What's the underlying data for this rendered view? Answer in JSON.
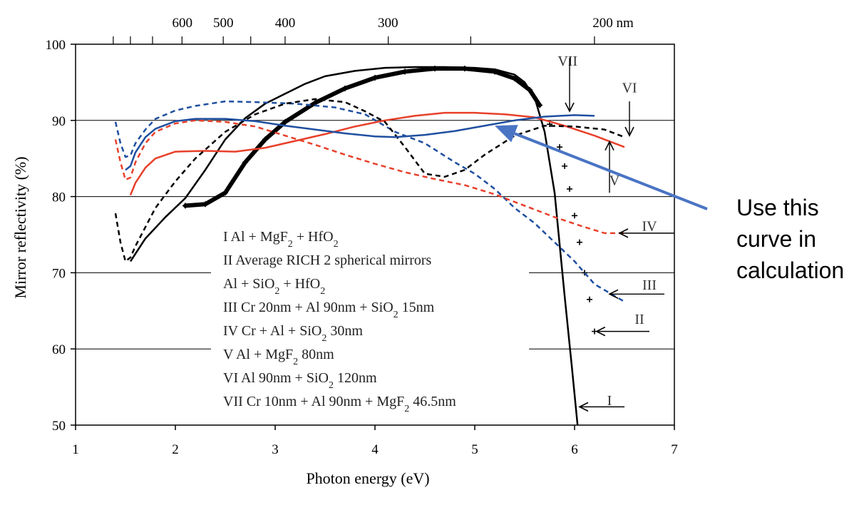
{
  "chart_data": {
    "type": "line",
    "xlabel": "Photon energy (eV)",
    "ylabel": "Mirror reflectivity (%)",
    "xlim": [
      1,
      7
    ],
    "ylim": [
      50,
      100
    ],
    "x_ticks": [
      1,
      2,
      3,
      4,
      5,
      6,
      7
    ],
    "y_ticks": [
      50,
      60,
      70,
      80,
      90,
      100
    ],
    "grid": "horizontal",
    "top_axis": {
      "ticks": [
        {
          "energy": 2.07,
          "label": "600"
        },
        {
          "energy": 2.48,
          "label": "500"
        },
        {
          "energy": 3.1,
          "label": "400"
        },
        {
          "energy": 4.13,
          "label": "300"
        },
        {
          "energy": 6.2,
          "label": "200 nm"
        }
      ]
    },
    "legend": [
      {
        "id": "I",
        "parts": [
          {
            "t": "I     Al + MgF"
          },
          {
            "t": "2",
            "sub": true
          },
          {
            "t": " + HfO"
          },
          {
            "t": "2",
            "sub": true
          }
        ]
      },
      {
        "id": "II",
        "parts": [
          {
            "t": "II    Average RICH 2 spherical mirrors"
          }
        ]
      },
      {
        "id": "II-b",
        "parts": [
          {
            "t": "         Al + SiO"
          },
          {
            "t": "2",
            "sub": true
          },
          {
            "t": " + HfO"
          },
          {
            "t": "2",
            "sub": true
          }
        ]
      },
      {
        "id": "III",
        "parts": [
          {
            "t": "III   Cr 20nm + Al 90nm + SiO"
          },
          {
            "t": "2",
            "sub": true
          },
          {
            "t": " 15nm"
          }
        ]
      },
      {
        "id": "IV",
        "parts": [
          {
            "t": "IV   Cr + Al + SiO"
          },
          {
            "t": "2",
            "sub": true
          },
          {
            "t": " 30nm"
          }
        ]
      },
      {
        "id": "V",
        "parts": [
          {
            "t": "V     Al + MgF"
          },
          {
            "t": "2",
            "sub": true
          },
          {
            "t": " 80nm"
          }
        ]
      },
      {
        "id": "VI",
        "parts": [
          {
            "t": "VI   Al 90nm + SiO"
          },
          {
            "t": "2",
            "sub": true
          },
          {
            "t": " 120nm"
          }
        ]
      },
      {
        "id": "VII",
        "parts": [
          {
            "t": "VII  Cr 10nm + Al 90nm + MgF"
          },
          {
            "t": "2",
            "sub": true
          },
          {
            "t": " 46.5nm"
          }
        ]
      }
    ],
    "series": [
      {
        "name": "I",
        "color": "#000000",
        "style": "solid",
        "x": [
          1.55,
          1.7,
          1.9,
          2.1,
          2.3,
          2.5,
          2.7,
          2.9,
          3.1,
          3.3,
          3.5,
          3.8,
          4.1,
          4.4,
          4.7,
          5.0,
          5.2,
          5.4,
          5.5,
          5.6,
          5.7,
          5.8,
          5.9,
          5.97,
          6.03
        ],
        "y": [
          71.5,
          74.5,
          77.3,
          79.8,
          83.5,
          87.5,
          90.3,
          92.2,
          93.5,
          94.8,
          95.8,
          96.5,
          96.9,
          97,
          97,
          96.9,
          96.7,
          96,
          95,
          93,
          88.5,
          80.5,
          67,
          58,
          50
        ]
      },
      {
        "name": "II",
        "color": "#000000",
        "style": "plus",
        "x": [
          2.1,
          2.3,
          2.5,
          2.7,
          2.9,
          3.1,
          3.4,
          3.7,
          4.0,
          4.3,
          4.6,
          4.9,
          5.2,
          5.4,
          5.55,
          5.65,
          5.75,
          5.85,
          5.9,
          5.95,
          6.0,
          6.05,
          6.1,
          6.15,
          6.2
        ],
        "y": [
          78.8,
          79,
          80.5,
          84.5,
          87.5,
          89.8,
          92.3,
          94.2,
          95.6,
          96.4,
          96.8,
          96.8,
          96.4,
          95.5,
          94,
          92,
          89.5,
          86.5,
          84,
          81,
          77.5,
          74,
          70,
          66.5,
          62.3
        ]
      },
      {
        "name": "III",
        "color": "#1f4fa0",
        "style": "dashed",
        "x": [
          1.4,
          1.45,
          1.5,
          1.55,
          1.6,
          1.7,
          1.8,
          2.0,
          2.2,
          2.5,
          2.8,
          3.2,
          3.6,
          3.9,
          4.2,
          4.5,
          4.8,
          5.0,
          5.2,
          5.4,
          5.6,
          5.8,
          6.0,
          6.2,
          6.5
        ],
        "y": [
          89.8,
          87,
          85.2,
          85.4,
          87,
          88.8,
          90.2,
          91.3,
          91.9,
          92.5,
          92.4,
          92.2,
          91.7,
          90.8,
          88.5,
          87,
          84.5,
          83,
          81,
          78.5,
          76.5,
          74,
          71.5,
          68.5,
          66.2
        ]
      },
      {
        "name": "IV",
        "color": "#e8402a",
        "style": "dashed",
        "x": [
          1.4,
          1.45,
          1.5,
          1.55,
          1.6,
          1.7,
          1.8,
          2.0,
          2.2,
          2.5,
          2.8,
          3.1,
          3.4,
          3.7,
          4.0,
          4.3,
          4.6,
          4.9,
          5.2,
          5.5,
          5.8,
          6.1,
          6.3,
          6.5
        ],
        "y": [
          87.5,
          84.5,
          82.2,
          82.5,
          84.5,
          87,
          88.5,
          89.6,
          90,
          89.8,
          89.2,
          88,
          86.8,
          85.5,
          84.3,
          83.2,
          82.3,
          81.5,
          80.3,
          78.8,
          77.3,
          76,
          75.2,
          75.2
        ]
      },
      {
        "name": "V",
        "color": "#e8402a",
        "style": "solid",
        "x": [
          1.55,
          1.6,
          1.7,
          1.8,
          2.0,
          2.3,
          2.6,
          2.9,
          3.2,
          3.5,
          3.8,
          4.1,
          4.4,
          4.7,
          5.0,
          5.3,
          5.6,
          5.9,
          6.2,
          6.5
        ],
        "y": [
          80.2,
          81.8,
          83.8,
          85,
          85.9,
          86,
          85.9,
          86.4,
          87.3,
          88.2,
          89.2,
          90,
          90.6,
          91,
          91,
          90.8,
          90.4,
          89.3,
          88,
          86.5
        ]
      },
      {
        "name": "VI",
        "color": "#000000",
        "style": "dashed",
        "x": [
          1.4,
          1.45,
          1.5,
          1.55,
          1.6,
          1.7,
          1.8,
          2.0,
          2.2,
          2.5,
          2.8,
          3.1,
          3.4,
          3.7,
          3.9,
          4.1,
          4.3,
          4.5,
          4.7,
          4.9,
          5.1,
          5.4,
          5.7,
          6.0,
          6.3,
          6.5
        ],
        "y": [
          77.8,
          74,
          71.5,
          72,
          73.5,
          76,
          78.5,
          82,
          85,
          88.5,
          90.8,
          92.2,
          92.8,
          92.4,
          91.2,
          89.8,
          86.5,
          83,
          82.6,
          83.5,
          85.5,
          88,
          89.3,
          89.2,
          88.8,
          87.8
        ]
      },
      {
        "name": "VII",
        "color": "#1f4fa0",
        "style": "solid",
        "x": [
          1.5,
          1.55,
          1.6,
          1.7,
          1.8,
          2.0,
          2.2,
          2.5,
          2.8,
          3.1,
          3.4,
          3.7,
          4.0,
          4.2,
          4.5,
          4.8,
          5.1,
          5.4,
          5.7,
          6.0,
          6.2
        ],
        "y": [
          83.5,
          84,
          85.8,
          87.8,
          88.9,
          89.9,
          90.2,
          90.2,
          89.9,
          89.3,
          88.8,
          88.3,
          87.9,
          87.8,
          88.1,
          88.6,
          89.3,
          90,
          90.5,
          90.7,
          90.6
        ]
      }
    ],
    "curve_labels": [
      {
        "text": "VII",
        "x": 5.93,
        "y": 97.2
      },
      {
        "text": "VI",
        "x": 6.55,
        "y": 93.7
      },
      {
        "text": "V",
        "x": 6.4,
        "y": 81.5
      },
      {
        "text": "IV",
        "x": 6.75,
        "y": 75.5
      },
      {
        "text": "III",
        "x": 6.75,
        "y": 67.8
      },
      {
        "text": "II",
        "x": 6.65,
        "y": 63.3
      },
      {
        "text": "I",
        "x": 6.35,
        "y": 52.6
      }
    ],
    "curve_arrows": [
      {
        "label": "VII",
        "dir": "down",
        "from": [
          5.95,
          98.2
        ],
        "to": [
          5.95,
          91.2
        ]
      },
      {
        "label": "VI",
        "dir": "down",
        "from": [
          6.55,
          92.5
        ],
        "to": [
          6.55,
          88
        ]
      },
      {
        "label": "V",
        "dir": "up",
        "from": [
          6.35,
          80.5
        ],
        "to": [
          6.35,
          87.2
        ]
      },
      {
        "label": "IV",
        "dir": "left",
        "from": [
          7.0,
          75.2
        ],
        "to": [
          6.45,
          75.2
        ]
      },
      {
        "label": "III",
        "dir": "left",
        "from": [
          6.9,
          67.2
        ],
        "to": [
          6.35,
          67.2
        ]
      },
      {
        "label": "II",
        "dir": "left",
        "from": [
          6.75,
          62.3
        ],
        "to": [
          6.22,
          62.3
        ]
      },
      {
        "label": "I",
        "dir": "left",
        "from": [
          6.5,
          52.4
        ],
        "to": [
          6.05,
          52.4
        ]
      }
    ],
    "annotation": {
      "text_lines": [
        "Use this",
        "curve in",
        "calculation"
      ],
      "color": "#4a74c4",
      "target_series": "VII",
      "target": [
        5.2,
        89.3
      ]
    }
  }
}
